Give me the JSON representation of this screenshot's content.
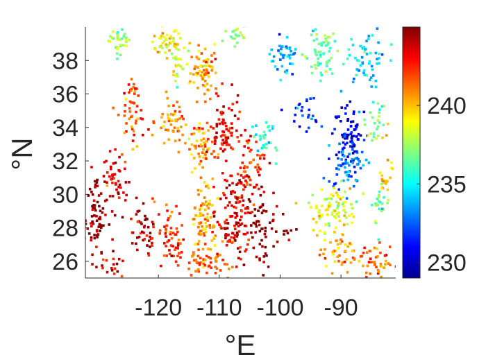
{
  "chart_data": {
    "type": "scatter",
    "title": "",
    "xlabel": "°E",
    "ylabel": "°N",
    "xlim": [
      -132,
      -81
    ],
    "ylim": [
      25,
      40
    ],
    "xticks": [
      -120,
      -110,
      -100,
      -90
    ],
    "xtick_labels": [
      "-120",
      "-110",
      "-100",
      "-90"
    ],
    "yticks": [
      26,
      28,
      30,
      32,
      34,
      36,
      38
    ],
    "ytick_labels": [
      "26",
      "28",
      "30",
      "32",
      "34",
      "36",
      "38"
    ],
    "grid": false,
    "colorbar": {
      "colormap": "jet",
      "range": [
        229,
        245
      ],
      "ticks": [
        230,
        235,
        240
      ],
      "tick_labels": [
        "230",
        "235",
        "240"
      ]
    },
    "clusters": [
      {
        "lon": -126.5,
        "lat": 39.2,
        "value": 237.5,
        "sx": 1.2,
        "sy": 0.6,
        "n": 30
      },
      {
        "lon": -118.5,
        "lat": 39.0,
        "value": 239.0,
        "sx": 2.0,
        "sy": 0.6,
        "n": 50
      },
      {
        "lon": -112.5,
        "lat": 37.3,
        "value": 240.5,
        "sx": 1.6,
        "sy": 1.1,
        "n": 70
      },
      {
        "lon": -116.5,
        "lat": 37.6,
        "value": 238.5,
        "sx": 1.0,
        "sy": 0.8,
        "n": 20
      },
      {
        "lon": -107.0,
        "lat": 39.4,
        "value": 237.5,
        "sx": 1.6,
        "sy": 0.4,
        "n": 20
      },
      {
        "lon": -99.5,
        "lat": 38.3,
        "value": 233.5,
        "sx": 1.5,
        "sy": 0.8,
        "n": 40
      },
      {
        "lon": -93.5,
        "lat": 38.4,
        "value": 236.5,
        "sx": 2.0,
        "sy": 1.1,
        "n": 60
      },
      {
        "lon": -86.0,
        "lat": 38.3,
        "value": 234.5,
        "sx": 2.5,
        "sy": 1.2,
        "n": 60
      },
      {
        "lon": -96.5,
        "lat": 35.0,
        "value": 231.5,
        "sx": 2.0,
        "sy": 0.8,
        "n": 25
      },
      {
        "lon": -88.5,
        "lat": 33.6,
        "value": 230.5,
        "sx": 2.0,
        "sy": 1.3,
        "n": 70
      },
      {
        "lon": -89.0,
        "lat": 31.8,
        "value": 232.5,
        "sx": 2.2,
        "sy": 1.0,
        "n": 70
      },
      {
        "lon": -84.5,
        "lat": 34.5,
        "value": 236.5,
        "sx": 1.2,
        "sy": 1.0,
        "n": 25
      },
      {
        "lon": -102.5,
        "lat": 33.2,
        "value": 235.5,
        "sx": 1.3,
        "sy": 0.9,
        "n": 30
      },
      {
        "lon": -91.5,
        "lat": 29.2,
        "value": 238.5,
        "sx": 2.8,
        "sy": 1.0,
        "n": 90
      },
      {
        "lon": -83.5,
        "lat": 29.5,
        "value": 236.5,
        "sx": 1.0,
        "sy": 1.0,
        "n": 25
      },
      {
        "lon": -124.0,
        "lat": 35.0,
        "value": 242.0,
        "sx": 1.3,
        "sy": 1.5,
        "n": 50
      },
      {
        "lon": -118.0,
        "lat": 34.2,
        "value": 241.0,
        "sx": 1.8,
        "sy": 1.0,
        "n": 50
      },
      {
        "lon": -113.0,
        "lat": 33.0,
        "value": 240.5,
        "sx": 1.5,
        "sy": 1.2,
        "n": 50
      },
      {
        "lon": -109.0,
        "lat": 33.5,
        "value": 243.0,
        "sx": 1.8,
        "sy": 1.5,
        "n": 80
      },
      {
        "lon": -105.0,
        "lat": 31.8,
        "value": 242.5,
        "sx": 1.8,
        "sy": 1.3,
        "n": 60
      },
      {
        "lon": -130.5,
        "lat": 28.5,
        "value": 244.5,
        "sx": 1.2,
        "sy": 1.6,
        "n": 70
      },
      {
        "lon": -127.0,
        "lat": 30.8,
        "value": 243.5,
        "sx": 1.5,
        "sy": 1.2,
        "n": 50
      },
      {
        "lon": -122.5,
        "lat": 28.0,
        "value": 244.5,
        "sx": 1.6,
        "sy": 1.3,
        "n": 40
      },
      {
        "lon": -118.0,
        "lat": 27.5,
        "value": 242.5,
        "sx": 2.0,
        "sy": 1.5,
        "n": 60
      },
      {
        "lon": -112.5,
        "lat": 28.5,
        "value": 240.5,
        "sx": 1.5,
        "sy": 2.0,
        "n": 90
      },
      {
        "lon": -107.5,
        "lat": 28.5,
        "value": 243.5,
        "sx": 2.0,
        "sy": 1.8,
        "n": 120
      },
      {
        "lon": -103.0,
        "lat": 28.0,
        "value": 244.5,
        "sx": 2.0,
        "sy": 1.6,
        "n": 60
      },
      {
        "lon": -112.0,
        "lat": 25.8,
        "value": 241.5,
        "sx": 3.0,
        "sy": 0.6,
        "n": 50
      },
      {
        "lon": -128.0,
        "lat": 25.8,
        "value": 243.5,
        "sx": 1.8,
        "sy": 0.6,
        "n": 20
      },
      {
        "lon": -90.0,
        "lat": 26.5,
        "value": 240.5,
        "sx": 2.5,
        "sy": 1.0,
        "n": 50
      },
      {
        "lon": -84.0,
        "lat": 26.0,
        "value": 241.5,
        "sx": 2.0,
        "sy": 0.8,
        "n": 40
      },
      {
        "lon": -98.5,
        "lat": 27.7,
        "value": 245.0,
        "sx": 1.0,
        "sy": 0.4,
        "n": 8
      },
      {
        "lon": -82.5,
        "lat": 31.5,
        "value": 240.0,
        "sx": 0.8,
        "sy": 1.5,
        "n": 20
      }
    ]
  }
}
